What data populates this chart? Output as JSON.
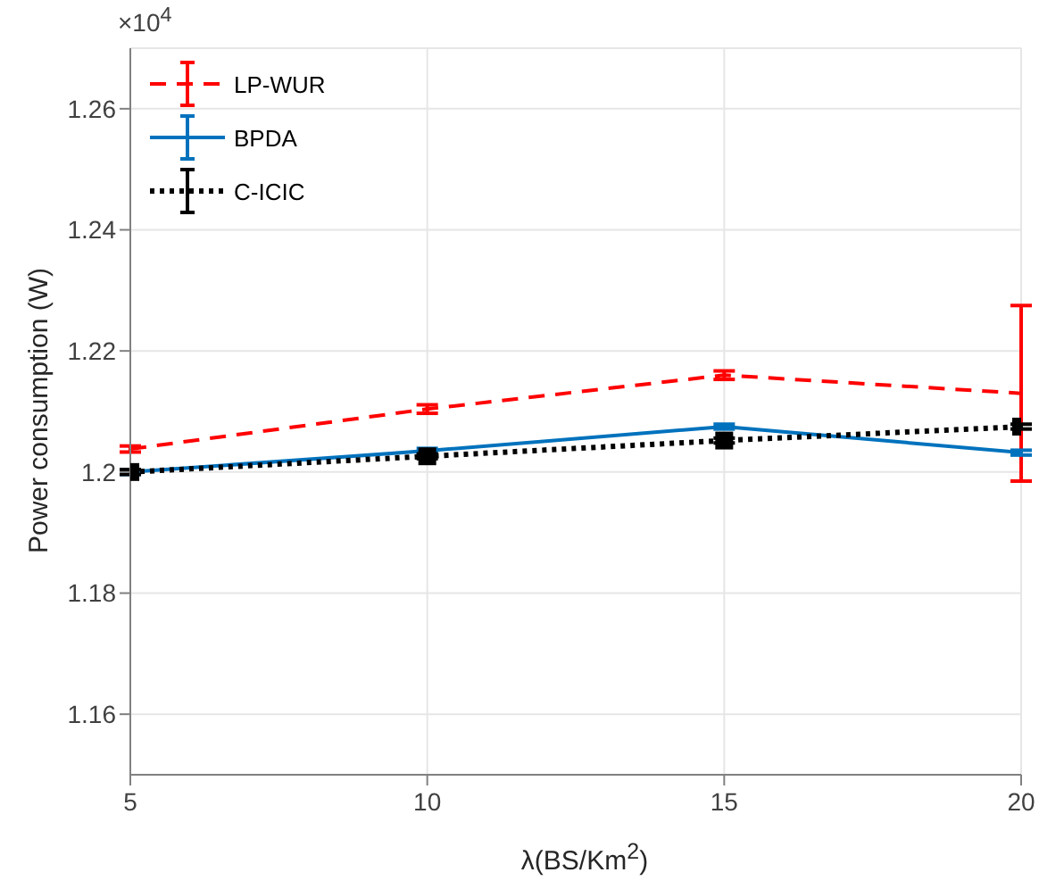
{
  "chart_data": {
    "type": "line",
    "xlabel": "λ(BS/Km$^{2}$)",
    "ylabel": "Power consumption (W)",
    "annotations": [
      "×10$^{4}$"
    ],
    "x": [
      5,
      10,
      15,
      20
    ],
    "xlim": [
      5,
      20
    ],
    "xticks": [
      5,
      10,
      15,
      20
    ],
    "ylim": [
      1.15,
      1.27
    ],
    "yticks": [
      1.16,
      1.18,
      1.2,
      1.22,
      1.24,
      1.26
    ],
    "grid": true,
    "legend": "top left",
    "series": [
      {
        "name": "LP-WUR",
        "color": "#ff0000",
        "line_style": "dashed",
        "marker": "none",
        "values": [
          1.2038,
          1.2104,
          1.216,
          1.213
        ],
        "errors": [
          0.0005,
          0.0007,
          0.0007,
          0.0145
        ]
      },
      {
        "name": "BPDA",
        "color": "#0072bd",
        "line_style": "solid",
        "marker": "none",
        "values": [
          1.2,
          1.2035,
          1.2075,
          1.2032
        ],
        "errors": [
          0.0004,
          0.0004,
          0.0004,
          0.0004
        ]
      },
      {
        "name": "C-ICIC",
        "color": "#000000",
        "line_style": "dotted",
        "marker": "square",
        "values": [
          1.2,
          1.2026,
          1.2052,
          1.2075
        ],
        "errors": [
          0.0004,
          0.0004,
          0.0004,
          0.0004
        ]
      }
    ]
  }
}
